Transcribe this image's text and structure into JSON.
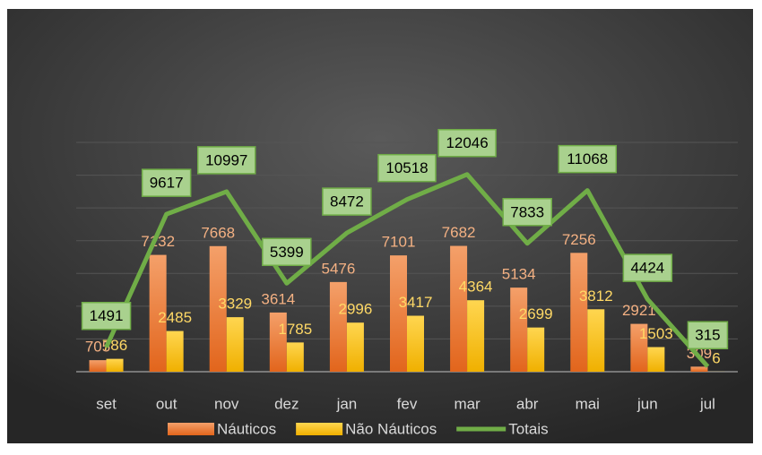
{
  "chart_data": {
    "type": "combo",
    "categories": [
      "set",
      "out",
      "nov",
      "dez",
      "jan",
      "fev",
      "mar",
      "abr",
      "mai",
      "jun",
      "jul"
    ],
    "series": [
      {
        "name": "Náuticos",
        "type": "bar",
        "color": "#ed7d31",
        "values": [
          705,
          7132,
          7668,
          3614,
          5476,
          7101,
          7682,
          5134,
          7256,
          2921,
          309
        ]
      },
      {
        "name": "Não Náuticos",
        "type": "bar",
        "color": "#ffc000",
        "values": [
          786,
          2485,
          3329,
          1785,
          2996,
          3417,
          4364,
          2699,
          3812,
          1503,
          6
        ]
      },
      {
        "name": "Totais",
        "type": "line",
        "color": "#70ad47",
        "values": [
          1491,
          9617,
          10997,
          5399,
          8472,
          10518,
          12046,
          7833,
          11068,
          4424,
          315
        ]
      }
    ],
    "ylim": [
      0,
      14000
    ],
    "yticks": [
      0,
      2000,
      4000,
      6000,
      8000,
      10000,
      12000,
      14000
    ],
    "grid": true
  }
}
